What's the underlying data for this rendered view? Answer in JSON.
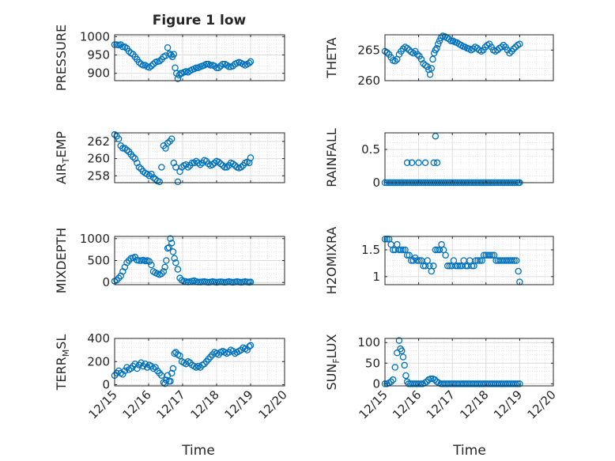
{
  "figure": {
    "title": "Figure 1 low",
    "xlabel": "Time",
    "accent_color": "#0072BD"
  },
  "chart_data": [
    {
      "type": "scatter",
      "id": "pressure",
      "ylabel": "PRESSURE",
      "yticks": [
        900,
        950,
        1000
      ],
      "ylim": [
        880,
        1005
      ],
      "xticks": [
        "12/15",
        "12/16",
        "12/17",
        "12/18",
        "12/19",
        "12/20"
      ],
      "xlim": [
        0,
        5
      ],
      "x": [
        0,
        0.06,
        0.12,
        0.18,
        0.24,
        0.3,
        0.36,
        0.42,
        0.48,
        0.54,
        0.6,
        0.66,
        0.72,
        0.78,
        0.84,
        0.9,
        0.96,
        1.02,
        1.08,
        1.14,
        1.2,
        1.26,
        1.32,
        1.38,
        1.44,
        1.5,
        1.56,
        1.62,
        1.66,
        1.7,
        1.74,
        1.78,
        1.82,
        1.86,
        1.9,
        1.94,
        1.98,
        2.04,
        2.1,
        2.16,
        2.22,
        2.28,
        2.34,
        2.4,
        2.46,
        2.52,
        2.58,
        2.64,
        2.7,
        2.76,
        2.82,
        2.88,
        2.94,
        3.0,
        3.06,
        3.12,
        3.18,
        3.24,
        3.3,
        3.36,
        3.42,
        3.48,
        3.54,
        3.6,
        3.66,
        3.72,
        3.78,
        3.84,
        3.9,
        3.96,
        4.0
      ],
      "y": [
        978,
        978,
        977,
        978,
        972,
        972,
        968,
        960,
        955,
        952,
        945,
        938,
        930,
        925,
        922,
        922,
        918,
        916,
        920,
        925,
        930,
        932,
        933,
        938,
        945,
        948,
        970,
        953,
        950,
        945,
        952,
        915,
        900,
        885,
        895,
        900,
        900,
        903,
        905,
        903,
        907,
        910,
        912,
        915,
        915,
        918,
        920,
        922,
        925,
        925,
        922,
        922,
        920,
        915,
        915,
        920,
        925,
        925,
        922,
        918,
        918,
        920,
        925,
        928,
        930,
        928,
        925,
        922,
        925,
        928,
        932
      ]
    },
    {
      "type": "scatter",
      "id": "theta",
      "ylabel": "THETA",
      "yticks": [
        260,
        265
      ],
      "ylim": [
        260,
        267.5
      ],
      "xticks": [
        "12/15",
        "12/16",
        "12/17",
        "12/18",
        "12/19",
        "12/20"
      ],
      "xlim": [
        0,
        5
      ],
      "x": [
        0,
        0.06,
        0.12,
        0.18,
        0.24,
        0.3,
        0.36,
        0.42,
        0.48,
        0.54,
        0.6,
        0.66,
        0.72,
        0.78,
        0.84,
        0.9,
        0.96,
        1.02,
        1.08,
        1.14,
        1.2,
        1.26,
        1.3,
        1.34,
        1.38,
        1.42,
        1.46,
        1.5,
        1.54,
        1.58,
        1.62,
        1.66,
        1.72,
        1.78,
        1.84,
        1.9,
        1.96,
        2.02,
        2.08,
        2.14,
        2.2,
        2.26,
        2.32,
        2.38,
        2.44,
        2.5,
        2.56,
        2.62,
        2.68,
        2.74,
        2.8,
        2.86,
        2.92,
        2.98,
        3.04,
        3.1,
        3.16,
        3.22,
        3.28,
        3.34,
        3.4,
        3.46,
        3.52,
        3.58,
        3.64,
        3.7,
        3.76,
        3.82,
        3.88,
        3.94,
        4.0
      ],
      "y": [
        264.8,
        264.6,
        264.3,
        263.8,
        263.3,
        263.2,
        263.5,
        264.3,
        264.8,
        265.2,
        265.5,
        265.3,
        265.0,
        264.7,
        264.5,
        264.8,
        264.3,
        264.0,
        263.5,
        262.8,
        262.5,
        262.3,
        261.8,
        261.0,
        262.0,
        263.5,
        264.5,
        265.0,
        265.3,
        266.0,
        266.5,
        267.0,
        267.3,
        267.2,
        267.0,
        266.8,
        266.5,
        266.5,
        266.3,
        266.2,
        266.0,
        265.8,
        265.6,
        265.5,
        265.3,
        265.2,
        265.0,
        265.2,
        265.5,
        265.3,
        265.0,
        264.8,
        265.0,
        265.5,
        265.8,
        266.0,
        265.5,
        265.0,
        264.8,
        265.0,
        265.3,
        265.5,
        265.8,
        265.5,
        265.0,
        264.5,
        264.8,
        265.2,
        265.5,
        265.8,
        266.0
      ]
    },
    {
      "type": "scatter",
      "id": "air_temp",
      "ylabel": "AIR_TEMP",
      "ylabel_display": {
        "base": "AIR",
        "sub": "T",
        "rest": "EMP"
      },
      "yticks": [
        258,
        260,
        262
      ],
      "ylim": [
        257.2,
        263
      ],
      "xticks": [
        "12/15",
        "12/16",
        "12/17",
        "12/18",
        "12/19",
        "12/20"
      ],
      "xlim": [
        0,
        5
      ],
      "x": [
        0,
        0.06,
        0.12,
        0.18,
        0.24,
        0.3,
        0.36,
        0.42,
        0.48,
        0.54,
        0.6,
        0.66,
        0.72,
        0.78,
        0.84,
        0.9,
        0.96,
        1.02,
        1.08,
        1.14,
        1.2,
        1.26,
        1.32,
        1.38,
        1.44,
        1.5,
        1.56,
        1.62,
        1.68,
        1.74,
        1.8,
        1.86,
        1.92,
        1.98,
        2.04,
        2.1,
        2.16,
        2.22,
        2.28,
        2.34,
        2.4,
        2.46,
        2.52,
        2.58,
        2.64,
        2.7,
        2.76,
        2.82,
        2.88,
        2.94,
        3.0,
        3.06,
        3.12,
        3.18,
        3.24,
        3.3,
        3.36,
        3.42,
        3.48,
        3.54,
        3.6,
        3.66,
        3.72,
        3.78,
        3.84,
        3.9,
        3.96,
        4.0
      ],
      "y": [
        262.8,
        262.6,
        262.3,
        261.5,
        261.2,
        261.2,
        261.0,
        260.8,
        260.5,
        260.2,
        260.0,
        259.5,
        259.0,
        258.8,
        258.5,
        258.3,
        258.2,
        258.0,
        258.2,
        257.8,
        257.6,
        257.4,
        257.3,
        259.0,
        261.5,
        261.2,
        261.8,
        262.0,
        262.3,
        259.5,
        259.0,
        257.3,
        258.5,
        259.0,
        259.2,
        259.3,
        259.0,
        259.2,
        259.5,
        259.5,
        259.7,
        259.5,
        259.3,
        259.5,
        259.8,
        259.7,
        259.4,
        259.2,
        259.3,
        259.5,
        259.7,
        259.6,
        259.4,
        259.2,
        259.0,
        259.0,
        259.2,
        259.5,
        259.4,
        259.2,
        259.0,
        258.9,
        259.0,
        259.2,
        259.5,
        259.6,
        259.5,
        260.1
      ]
    },
    {
      "type": "scatter",
      "id": "rainfall",
      "ylabel": "RAINFALL",
      "yticks": [
        0,
        0.5
      ],
      "yticklabels": [
        "0",
        "0.5"
      ],
      "ylim": [
        0,
        0.75
      ],
      "xticks": [
        "12/15",
        "12/16",
        "12/17",
        "12/18",
        "12/19",
        "12/20"
      ],
      "xlim": [
        0,
        5
      ],
      "x": [
        0,
        0.06,
        0.12,
        0.18,
        0.24,
        0.3,
        0.36,
        0.42,
        0.48,
        0.54,
        0.6,
        0.66,
        0.72,
        0.78,
        0.84,
        0.9,
        0.96,
        1.02,
        1.08,
        1.14,
        1.2,
        1.26,
        1.32,
        1.38,
        1.44,
        1.5,
        1.56,
        1.62,
        1.68,
        1.74,
        1.8,
        1.86,
        1.92,
        1.98,
        2.04,
        2.1,
        2.16,
        2.22,
        2.28,
        2.34,
        2.4,
        2.46,
        2.52,
        2.58,
        2.64,
        2.7,
        2.76,
        2.82,
        2.88,
        2.94,
        3.0,
        3.06,
        3.12,
        3.18,
        3.24,
        3.3,
        3.36,
        3.42,
        3.48,
        3.54,
        3.6,
        3.66,
        3.72,
        3.78,
        3.84,
        3.9,
        3.96,
        4.0,
        0.66,
        0.8,
        1.0,
        1.2,
        1.45,
        1.5,
        1.55
      ],
      "y": [
        0,
        0,
        0,
        0,
        0,
        0,
        0,
        0,
        0,
        0,
        0,
        0,
        0,
        0,
        0,
        0,
        0,
        0,
        0,
        0,
        0,
        0,
        0,
        0,
        0,
        0,
        0,
        0,
        0,
        0,
        0,
        0,
        0,
        0,
        0,
        0,
        0,
        0,
        0,
        0,
        0,
        0,
        0,
        0,
        0,
        0,
        0,
        0,
        0,
        0,
        0,
        0,
        0,
        0,
        0,
        0,
        0,
        0,
        0,
        0,
        0,
        0,
        0,
        0,
        0,
        0,
        0,
        0,
        0.3,
        0.3,
        0.3,
        0.3,
        0.3,
        0.7,
        0.3
      ]
    },
    {
      "type": "scatter",
      "id": "mixdepth",
      "ylabel": "MIXDEPTH",
      "yticks": [
        0,
        500,
        1000
      ],
      "ylim": [
        -50,
        1050
      ],
      "xticks": [
        "12/15",
        "12/16",
        "12/17",
        "12/18",
        "12/19",
        "12/20"
      ],
      "xlim": [
        0,
        5
      ],
      "x": [
        0,
        0.06,
        0.12,
        0.18,
        0.24,
        0.3,
        0.36,
        0.42,
        0.48,
        0.54,
        0.6,
        0.66,
        0.72,
        0.78,
        0.84,
        0.9,
        0.96,
        1.02,
        1.08,
        1.14,
        1.2,
        1.26,
        1.32,
        1.38,
        1.44,
        1.48,
        1.52,
        1.56,
        1.6,
        1.64,
        1.68,
        1.72,
        1.76,
        1.8,
        1.86,
        1.92,
        1.98,
        2.04,
        2.1,
        2.16,
        2.22,
        2.28,
        2.34,
        2.4,
        2.46,
        2.52,
        2.58,
        2.64,
        2.7,
        2.76,
        2.82,
        2.88,
        2.94,
        3.0,
        3.06,
        3.12,
        3.18,
        3.24,
        3.3,
        3.36,
        3.42,
        3.48,
        3.54,
        3.6,
        3.66,
        3.72,
        3.78,
        3.84,
        3.9,
        3.96,
        4.0
      ],
      "y": [
        30,
        50,
        100,
        150,
        250,
        350,
        450,
        500,
        550,
        560,
        580,
        510,
        500,
        500,
        510,
        490,
        500,
        480,
        400,
        250,
        220,
        200,
        180,
        200,
        250,
        350,
        500,
        780,
        800,
        1000,
        900,
        700,
        550,
        450,
        300,
        100,
        50,
        30,
        20,
        10,
        20,
        30,
        40,
        20,
        10,
        10,
        15,
        20,
        10,
        5,
        10,
        20,
        10,
        5,
        10,
        15,
        10,
        5,
        10,
        20,
        10,
        5,
        10,
        20,
        10,
        5,
        10,
        20,
        10,
        5,
        10
      ]
    },
    {
      "type": "scatter",
      "id": "h2omixra",
      "ylabel": "H2OMIXRA",
      "yticks": [
        1,
        1.5
      ],
      "yticklabels": [
        "1",
        "1.5"
      ],
      "ylim": [
        0.85,
        1.75
      ],
      "xticks": [
        "12/15",
        "12/16",
        "12/17",
        "12/18",
        "12/19",
        "12/20"
      ],
      "xlim": [
        0,
        5
      ],
      "x": [
        0,
        0.06,
        0.12,
        0.18,
        0.24,
        0.3,
        0.36,
        0.42,
        0.48,
        0.54,
        0.6,
        0.66,
        0.72,
        0.78,
        0.84,
        0.9,
        0.96,
        1.02,
        1.08,
        1.14,
        1.2,
        1.26,
        1.32,
        1.38,
        1.44,
        1.5,
        1.56,
        1.62,
        1.68,
        1.74,
        1.8,
        1.86,
        1.92,
        1.98,
        2.04,
        2.1,
        2.16,
        2.22,
        2.28,
        2.34,
        2.4,
        2.46,
        2.52,
        2.58,
        2.64,
        2.7,
        2.76,
        2.82,
        2.88,
        2.94,
        3.0,
        3.06,
        3.12,
        3.18,
        3.24,
        3.3,
        3.36,
        3.42,
        3.48,
        3.54,
        3.6,
        3.66,
        3.72,
        3.78,
        3.84,
        3.9,
        3.96,
        4.0
      ],
      "y": [
        1.7,
        1.7,
        1.7,
        1.6,
        1.5,
        1.5,
        1.6,
        1.5,
        1.5,
        1.5,
        1.5,
        1.4,
        1.4,
        1.3,
        1.3,
        1.35,
        1.3,
        1.3,
        1.3,
        1.2,
        1.2,
        1.3,
        1.2,
        1.1,
        1.2,
        1.5,
        1.5,
        1.5,
        1.6,
        1.5,
        1.4,
        1.2,
        1.2,
        1.2,
        1.3,
        1.2,
        1.2,
        1.2,
        1.2,
        1.3,
        1.2,
        1.2,
        1.3,
        1.2,
        1.2,
        1.3,
        1.3,
        1.3,
        1.3,
        1.4,
        1.4,
        1.4,
        1.4,
        1.4,
        1.4,
        1.3,
        1.3,
        1.3,
        1.3,
        1.3,
        1.3,
        1.3,
        1.3,
        1.3,
        1.3,
        1.3,
        1.1,
        0.9
      ]
    },
    {
      "type": "scatter",
      "id": "terr_msl",
      "ylabel": "TERR_MSL",
      "ylabel_display": {
        "base": "TERR",
        "sub": "M",
        "rest": "SL"
      },
      "yticks": [
        0,
        200,
        400
      ],
      "ylim": [
        -10,
        400
      ],
      "xticks": [
        "12/15",
        "12/16",
        "12/17",
        "12/18",
        "12/19",
        "12/20"
      ],
      "xlim": [
        0,
        5
      ],
      "x": [
        0,
        0.06,
        0.12,
        0.18,
        0.24,
        0.3,
        0.36,
        0.42,
        0.48,
        0.54,
        0.6,
        0.66,
        0.72,
        0.78,
        0.84,
        0.9,
        0.96,
        1.02,
        1.08,
        1.14,
        1.2,
        1.26,
        1.32,
        1.38,
        1.44,
        1.48,
        1.52,
        1.56,
        1.6,
        1.64,
        1.68,
        1.72,
        1.76,
        1.8,
        1.86,
        1.92,
        1.98,
        2.04,
        2.1,
        2.16,
        2.22,
        2.28,
        2.34,
        2.4,
        2.46,
        2.52,
        2.58,
        2.64,
        2.7,
        2.76,
        2.82,
        2.88,
        2.94,
        3.0,
        3.06,
        3.12,
        3.18,
        3.24,
        3.3,
        3.36,
        3.42,
        3.48,
        3.54,
        3.6,
        3.66,
        3.72,
        3.78,
        3.84,
        3.9,
        3.96,
        4.0
      ],
      "y": [
        80,
        100,
        120,
        100,
        90,
        120,
        150,
        130,
        140,
        160,
        180,
        140,
        170,
        190,
        160,
        180,
        150,
        170,
        160,
        140,
        150,
        120,
        100,
        80,
        20,
        10,
        40,
        80,
        30,
        30,
        100,
        140,
        270,
        280,
        260,
        250,
        200,
        190,
        180,
        200,
        190,
        170,
        160,
        150,
        160,
        150,
        170,
        180,
        200,
        220,
        240,
        260,
        280,
        270,
        260,
        280,
        290,
        280,
        270,
        280,
        300,
        290,
        270,
        280,
        290,
        300,
        320,
        310,
        300,
        330,
        340
      ]
    },
    {
      "type": "scatter",
      "id": "sun_flux",
      "ylabel": "SUN_FLUX",
      "ylabel_display": {
        "base": "SUN",
        "sub": "F",
        "rest": "LUX"
      },
      "yticks": [
        0,
        50,
        100
      ],
      "ylim": [
        -5,
        110
      ],
      "xticks": [
        "12/15",
        "12/16",
        "12/17",
        "12/18",
        "12/19",
        "12/20"
      ],
      "xlim": [
        0,
        5
      ],
      "x": [
        0,
        0.06,
        0.12,
        0.18,
        0.24,
        0.3,
        0.36,
        0.42,
        0.46,
        0.5,
        0.54,
        0.58,
        0.62,
        0.66,
        0.7,
        0.76,
        0.82,
        0.88,
        0.94,
        1.0,
        1.06,
        1.12,
        1.18,
        1.24,
        1.3,
        1.36,
        1.42,
        1.48,
        1.54,
        1.6,
        1.66,
        1.72,
        1.78,
        1.84,
        1.9,
        1.96,
        2.02,
        2.08,
        2.14,
        2.2,
        2.26,
        2.32,
        2.38,
        2.44,
        2.5,
        2.56,
        2.62,
        2.68,
        2.74,
        2.8,
        2.86,
        2.92,
        2.98,
        3.04,
        3.1,
        3.16,
        3.22,
        3.28,
        3.34,
        3.4,
        3.46,
        3.52,
        3.58,
        3.64,
        3.7,
        3.76,
        3.82,
        3.88,
        3.94,
        4.0
      ],
      "y": [
        0,
        0,
        2,
        5,
        10,
        40,
        75,
        105,
        85,
        80,
        65,
        45,
        20,
        5,
        0,
        0,
        0,
        0,
        0,
        0,
        0,
        0,
        2,
        5,
        10,
        12,
        12,
        10,
        5,
        2,
        0,
        0,
        0,
        0,
        0,
        0,
        0,
        0,
        0,
        0,
        0,
        0,
        0,
        0,
        0,
        0,
        0,
        0,
        0,
        0,
        0,
        0,
        0,
        0,
        0,
        0,
        0,
        0,
        0,
        0,
        0,
        0,
        0,
        0,
        0,
        0,
        0,
        0,
        0,
        0
      ]
    }
  ]
}
